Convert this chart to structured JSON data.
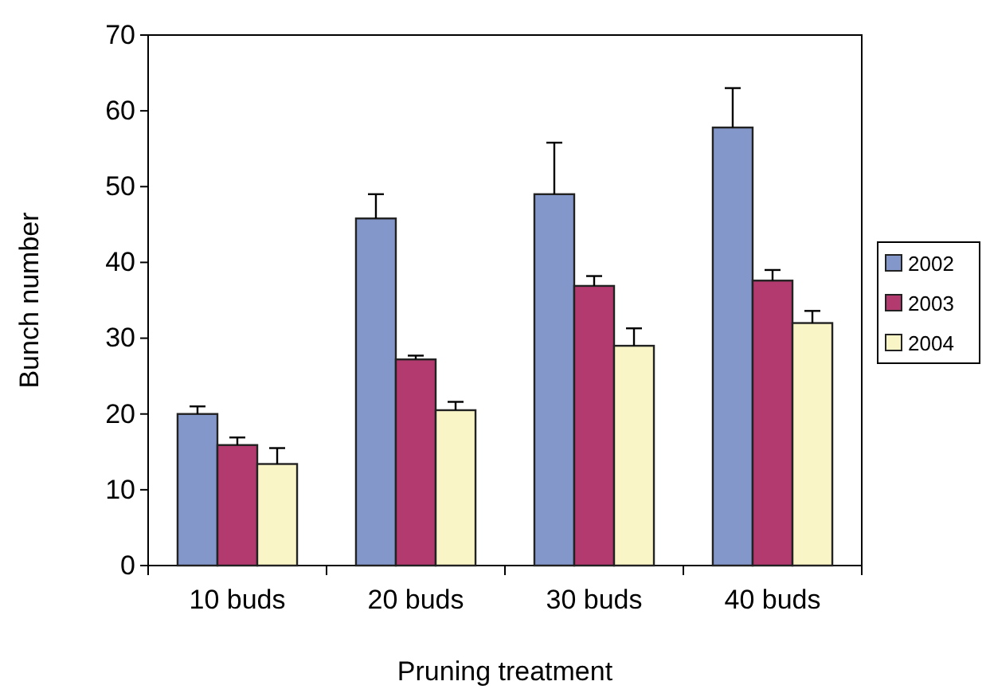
{
  "chart_data": {
    "type": "bar",
    "xlabel": "Pruning treatment",
    "ylabel": "Bunch number",
    "categories": [
      "10 buds",
      "20 buds",
      "30 buds",
      "40 buds"
    ],
    "series": [
      {
        "name": "2002",
        "color": "#8497cb",
        "values": [
          20.0,
          45.8,
          49.0,
          57.8
        ],
        "errors": [
          [
            20.0,
            21.0
          ],
          [
            45.8,
            49.0
          ],
          [
            49.0,
            55.8
          ],
          [
            57.8,
            63.0
          ]
        ]
      },
      {
        "name": "2003",
        "color": "#b33a6e",
        "values": [
          15.9,
          27.2,
          36.9,
          37.6
        ],
        "errors": [
          [
            15.9,
            16.9
          ],
          [
            27.2,
            27.7
          ],
          [
            36.9,
            38.2
          ],
          [
            37.6,
            39.0
          ]
        ]
      },
      {
        "name": "2004",
        "color": "#faf5c6",
        "values": [
          13.4,
          20.5,
          29.0,
          32.0
        ],
        "errors": [
          [
            13.4,
            15.5
          ],
          [
            20.5,
            21.6
          ],
          [
            29.0,
            31.3
          ],
          [
            32.0,
            33.6
          ]
        ]
      }
    ],
    "ylim": [
      0,
      70
    ],
    "yticks": [
      0,
      10,
      20,
      30,
      40,
      50,
      60,
      70
    ],
    "grid": false,
    "legend": "right"
  }
}
